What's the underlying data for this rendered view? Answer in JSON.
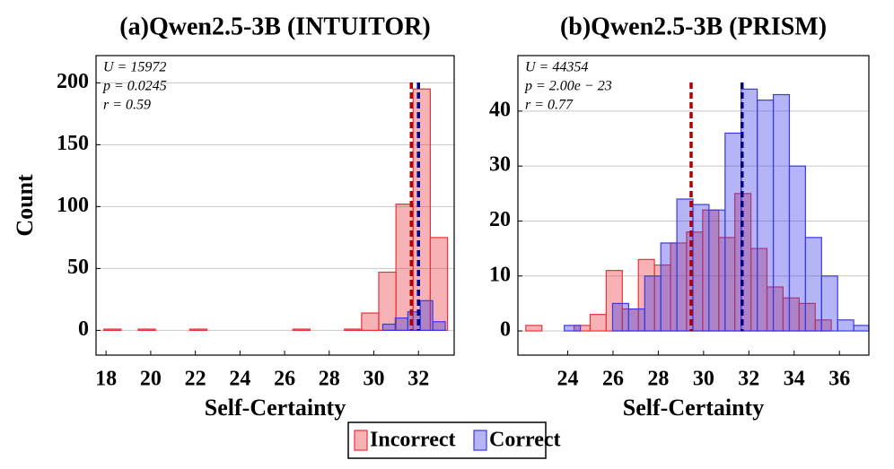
{
  "chart_data": [
    {
      "type": "histogram",
      "title": "(a)Qwen2.5-3B (INTUITOR)",
      "xlabel": "Self-Certainty",
      "ylabel": "Count",
      "xlim": [
        17.55,
        33.6
      ],
      "ylim": [
        -20,
        222
      ],
      "xticks": [
        18,
        20,
        22,
        24,
        26,
        28,
        30,
        32
      ],
      "yticks": [
        0,
        50,
        100,
        150,
        200
      ],
      "grid": true,
      "annotations": [
        "U = 15972",
        "p = 0.0245",
        "r = 0.59"
      ],
      "series": [
        {
          "name": "Incorrect",
          "color": "#e8343a",
          "bins": [
            17.9,
            18.67,
            19.44,
            20.21,
            20.98,
            21.75,
            22.52,
            23.29,
            24.06,
            24.83,
            25.6,
            26.37,
            27.14,
            27.91,
            28.68,
            29.45,
            30.22,
            30.99,
            31.76,
            32.53,
            33.3
          ],
          "values": [
            1,
            0,
            1,
            0,
            0,
            1,
            0,
            0,
            0,
            0,
            0,
            1,
            0,
            0,
            1,
            14,
            47,
            102,
            195,
            75
          ]
        },
        {
          "name": "Correct",
          "color": "#3a3ae8",
          "bins": [
            30.4,
            30.96,
            31.52,
            32.08,
            32.64,
            33.2
          ],
          "values": [
            5,
            10,
            15,
            24,
            7
          ]
        }
      ],
      "vlines": [
        {
          "x": 31.68,
          "color": "#b00000"
        },
        {
          "x": 32.0,
          "color": "#00008c"
        }
      ]
    },
    {
      "type": "histogram",
      "title": "(b)Qwen2.5-3B (PRISM)",
      "xlabel": "Self-Certainty",
      "xlim": [
        21.8,
        37.3
      ],
      "ylim": [
        -4.4,
        50.1
      ],
      "xticks": [
        24,
        26,
        28,
        30,
        32,
        34,
        36
      ],
      "yticks": [
        0,
        10,
        20,
        30,
        40
      ],
      "grid": true,
      "annotations": [
        "U = 44354",
        "p = 2.00e − 23",
        "r = 0.77"
      ],
      "series": [
        {
          "name": "Incorrect",
          "color": "#e8343a",
          "bins": [
            22.15,
            22.86,
            23.57,
            24.28,
            24.99,
            25.7,
            26.41,
            27.12,
            27.83,
            28.54,
            29.25,
            29.96,
            30.67,
            31.38,
            32.09,
            32.8,
            33.51,
            34.22,
            34.93,
            35.64
          ],
          "values": [
            1,
            0,
            0,
            1,
            3,
            11,
            4,
            13,
            12,
            16,
            18,
            22,
            17,
            25,
            15,
            8,
            6,
            5,
            2
          ]
        },
        {
          "name": "Correct",
          "color": "#3a3ae8",
          "bins": [
            23.85,
            24.56,
            25.27,
            25.98,
            26.69,
            27.4,
            28.11,
            28.82,
            29.53,
            30.24,
            30.95,
            31.66,
            32.37,
            33.08,
            33.79,
            34.5,
            35.21,
            35.92,
            36.63,
            37.3
          ],
          "values": [
            1,
            0,
            0,
            5,
            4,
            10,
            16,
            24,
            23,
            22,
            36,
            44,
            42,
            43,
            30,
            17,
            10,
            2,
            1
          ]
        }
      ],
      "vlines": [
        {
          "x": 29.45,
          "color": "#b00000"
        },
        {
          "x": 31.7,
          "color": "#00008c"
        }
      ]
    }
  ]
}
